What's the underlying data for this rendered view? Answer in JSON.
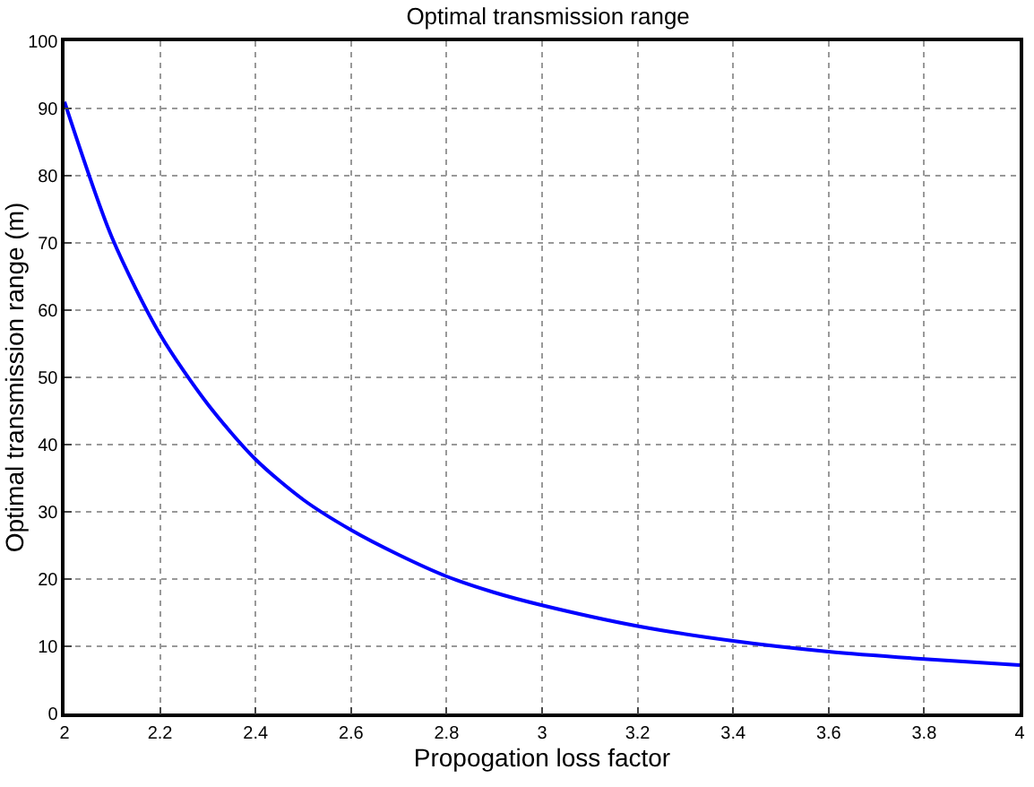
{
  "chart_data": {
    "type": "line",
    "title": "Optimal transmission range",
    "xlabel": "Propogation loss factor",
    "ylabel": "Optimal transmission range (m)",
    "x": [
      2,
      2.1,
      2.2,
      2.3,
      2.4,
      2.5,
      2.6,
      2.7,
      2.8,
      2.9,
      3,
      3.2,
      3.4,
      3.6,
      3.8,
      4
    ],
    "series": [
      {
        "color": "#0000ff",
        "values": [
          91,
          70.7,
          56.4,
          46,
          37.8,
          31.8,
          27.3,
          23.6,
          20.4,
          18,
          16.1,
          13,
          10.8,
          9.2,
          8.1,
          7.2
        ]
      }
    ],
    "xlim": [
      2,
      4
    ],
    "xticks": [
      2,
      2.2,
      2.4,
      2.6,
      2.8,
      3,
      3.2,
      3.4,
      3.6,
      3.8,
      4
    ],
    "ylim": [
      0,
      100
    ],
    "yticks": [
      0,
      10,
      20,
      30,
      40,
      50,
      60,
      70,
      80,
      90,
      100
    ],
    "grid": true,
    "marker": "none",
    "line_style": "solid"
  }
}
